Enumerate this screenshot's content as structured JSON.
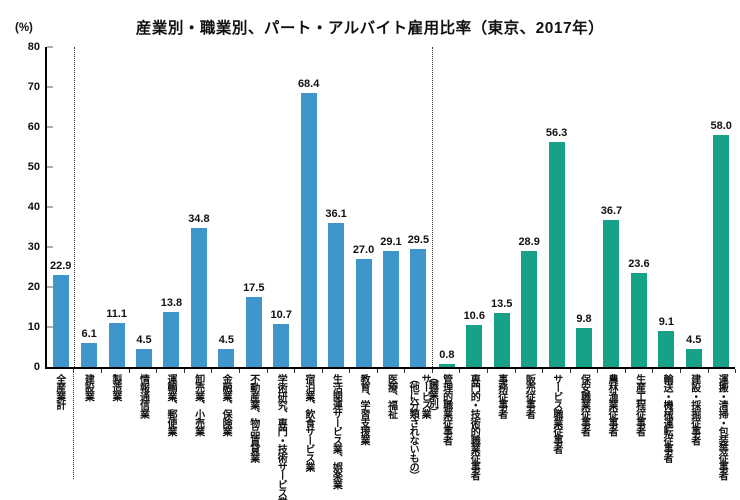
{
  "chart_data": {
    "type": "bar",
    "title": "産業別・職業別、パート・アルバイト雇用比率（東京、2017年）",
    "unit_label": "(%)",
    "ylim": [
      0,
      80
    ],
    "yticks": [
      0,
      10,
      20,
      30,
      40,
      50,
      60,
      70,
      80
    ],
    "grid": false,
    "legend_position": "none",
    "colors": {
      "industry_bar": "#3e96cb",
      "occupation_bar": "#17a287"
    },
    "groups": [
      {
        "id": "total",
        "color": "#3e96cb",
        "items": [
          {
            "label": "全産業計",
            "value": "22.9"
          }
        ]
      },
      {
        "id": "by-industry",
        "color": "#3e96cb",
        "items": [
          {
            "label": "建設業",
            "value": "6.1"
          },
          {
            "label": "製造業",
            "value": "11.1"
          },
          {
            "label": "情報通信業",
            "value": "4.5"
          },
          {
            "label": "運輸業、郵便業",
            "value": "13.8"
          },
          {
            "label": "卸売業、小売業",
            "value": "34.8"
          },
          {
            "label": "金融業、保険業",
            "value": "4.5"
          },
          {
            "label": "不動産業、物品賃貸業",
            "value": "17.5"
          },
          {
            "label": "学術研究、専門・技術サービス業",
            "value": "10.7"
          },
          {
            "label": "宿泊業、飲食サービス業",
            "value": "68.4"
          },
          {
            "label": "生活関連サービス業、娯楽業",
            "value": "36.1"
          },
          {
            "label": "教育、学習支援業",
            "value": "27.0"
          },
          {
            "label": "医療、福祉",
            "value": "29.1"
          },
          {
            "label": "サービス業\n（他に分類されないもの）",
            "value": "29.5"
          }
        ]
      },
      {
        "id": "by-occupation",
        "color": "#17a287",
        "group_label": "（職業別）",
        "items": [
          {
            "label": "管理的職業従事者",
            "value": "0.8"
          },
          {
            "label": "専門的・技術的職業従事者",
            "value": "10.6"
          },
          {
            "label": "事務従事者",
            "value": "13.5"
          },
          {
            "label": "販売従事者",
            "value": "28.9"
          },
          {
            "label": "サービス職業従事者",
            "value": "56.3"
          },
          {
            "label": "保安職業従事者",
            "value": "9.8"
          },
          {
            "label": "農林漁業従事者",
            "value": "36.7"
          },
          {
            "label": "生産工程従事者",
            "value": "23.6"
          },
          {
            "label": "輸送・機械運転従事者",
            "value": "9.1"
          },
          {
            "label": "建設・採掘従事者",
            "value": "4.5"
          },
          {
            "label": "運搬・清掃・包装等従事者",
            "value": "58.0"
          }
        ]
      }
    ]
  }
}
